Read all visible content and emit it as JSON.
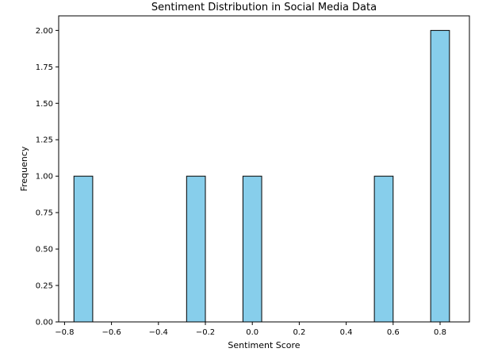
{
  "chart_data": {
    "type": "bar",
    "title": "Sentiment Distribution in Social Media Data",
    "xlabel": "Sentiment Score",
    "ylabel": "Frequency",
    "xlim": [
      -0.825,
      0.925
    ],
    "ylim": [
      0,
      2.1
    ],
    "xticks": [
      -0.8,
      -0.6,
      -0.4,
      -0.2,
      0.0,
      0.2,
      0.4,
      0.6,
      0.8
    ],
    "xtick_labels": [
      "−0.8",
      "−0.6",
      "−0.4",
      "−0.2",
      "0.0",
      "0.2",
      "0.4",
      "0.6",
      "0.8"
    ],
    "yticks": [
      0,
      0.25,
      0.5,
      0.75,
      1.0,
      1.25,
      1.5,
      1.75,
      2.0
    ],
    "ytick_labels": [
      "0.00",
      "0.25",
      "0.50",
      "0.75",
      "1.00",
      "1.25",
      "1.50",
      "1.75",
      "2.00"
    ],
    "bins": [
      {
        "x_start": -0.76,
        "x_end": -0.68,
        "value": 1
      },
      {
        "x_start": -0.28,
        "x_end": -0.2,
        "value": 1
      },
      {
        "x_start": -0.04,
        "x_end": 0.04,
        "value": 1
      },
      {
        "x_start": 0.52,
        "x_end": 0.6,
        "value": 1
      },
      {
        "x_start": 0.76,
        "x_end": 0.84,
        "value": 2
      }
    ],
    "bar_color": "#87ceeb",
    "edge_color": "#000000",
    "grid": false
  }
}
